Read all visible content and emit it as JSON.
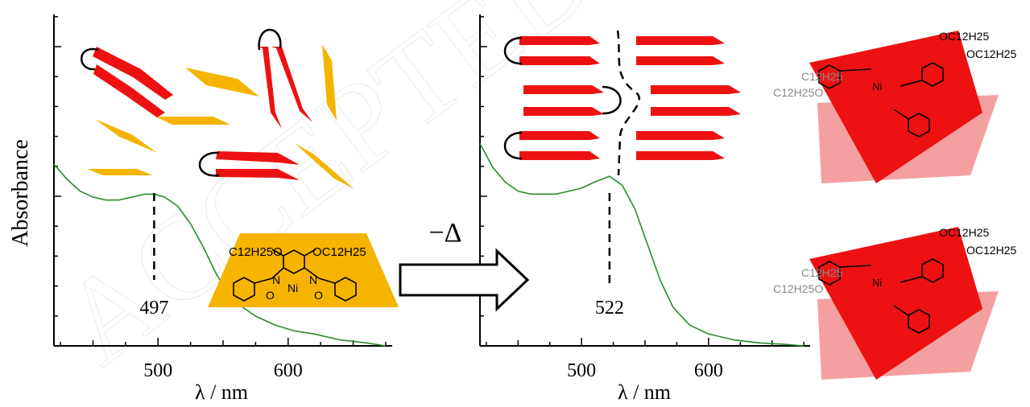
{
  "figure": {
    "watermark": "ACCEPTED",
    "arrow_label": "−Δ",
    "y_axis_label": "Absorbance",
    "colors": {
      "spectrum": "#2e8b2e",
      "red_molecule": "#ee1111",
      "yellow_molecule": "#f5b400",
      "axis": "#000000",
      "faded": "#f4a0a0"
    },
    "chem_labels": {
      "left_sub1": "C12H25O",
      "left_sub2": "OC12H25",
      "right_sub1": "OC12H25",
      "right_sub2": "OC12H25",
      "right_faded_sub1": "C12H25",
      "right_faded_sub2": "C12H25O"
    }
  },
  "chart_data": [
    {
      "type": "line",
      "panel": "left",
      "xlabel": "λ / nm",
      "ylabel": "Absorbance",
      "xlim": [
        420,
        680
      ],
      "ylim": [
        0,
        1.0
      ],
      "xticks": [
        500,
        600
      ],
      "x": [
        420,
        430,
        440,
        450,
        460,
        470,
        480,
        490,
        497,
        505,
        515,
        525,
        535,
        545,
        555,
        565,
        575,
        590,
        605,
        620,
        640,
        660,
        675
      ],
      "y": [
        0.61,
        0.56,
        0.52,
        0.5,
        0.49,
        0.49,
        0.5,
        0.51,
        0.51,
        0.5,
        0.47,
        0.41,
        0.33,
        0.24,
        0.17,
        0.13,
        0.1,
        0.07,
        0.05,
        0.04,
        0.02,
        0.01,
        0.0
      ],
      "annotation": {
        "label": "497",
        "x": 497
      }
    },
    {
      "type": "line",
      "panel": "right",
      "xlabel": "λ / nm",
      "ylabel": "",
      "xlim": [
        420,
        680
      ],
      "ylim": [
        0,
        1.0
      ],
      "xticks": [
        500,
        600
      ],
      "x": [
        420,
        430,
        440,
        450,
        460,
        470,
        480,
        490,
        500,
        510,
        522,
        532,
        542,
        552,
        562,
        572,
        585,
        600,
        620,
        640,
        660,
        675
      ],
      "y": [
        0.68,
        0.6,
        0.55,
        0.52,
        0.51,
        0.51,
        0.51,
        0.52,
        0.53,
        0.55,
        0.57,
        0.54,
        0.46,
        0.34,
        0.22,
        0.13,
        0.07,
        0.04,
        0.02,
        0.01,
        0.005,
        0.0
      ],
      "annotation": {
        "label": "522",
        "x": 522
      }
    }
  ]
}
